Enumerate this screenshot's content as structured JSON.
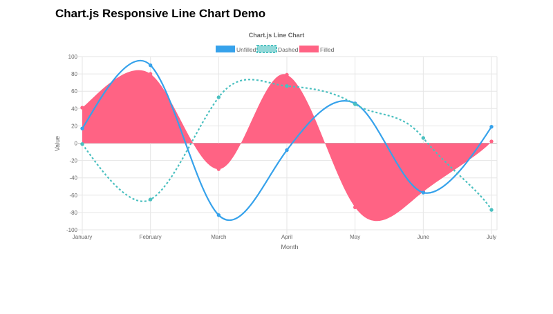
{
  "page": {
    "heading": "Chart.js Responsive Line Chart Demo"
  },
  "chart_data": {
    "type": "line",
    "title": "Chart.js Line Chart",
    "xlabel": "Month",
    "ylabel": "Value",
    "categories": [
      "January",
      "February",
      "March",
      "April",
      "May",
      "June",
      "July"
    ],
    "ylim": [
      -100,
      100
    ],
    "yticks": [
      100,
      80,
      60,
      40,
      20,
      0,
      -20,
      -40,
      -60,
      -80,
      -100
    ],
    "grid": true,
    "legend_position": "top",
    "series": [
      {
        "name": "Unfilled",
        "values": [
          17,
          90,
          -83,
          -8,
          46,
          -57,
          19
        ],
        "color": "#36a2eb",
        "style": "solid",
        "fill": false
      },
      {
        "name": "Dashed",
        "values": [
          -1,
          -65,
          53,
          66,
          45,
          6,
          -77
        ],
        "color": "#4bc0c0",
        "style": "dashed",
        "fill": false
      },
      {
        "name": "Filled",
        "values": [
          41,
          80,
          -30,
          79,
          -74,
          -56,
          2
        ],
        "color": "#ff6384",
        "style": "solid",
        "fill": true
      }
    ]
  }
}
